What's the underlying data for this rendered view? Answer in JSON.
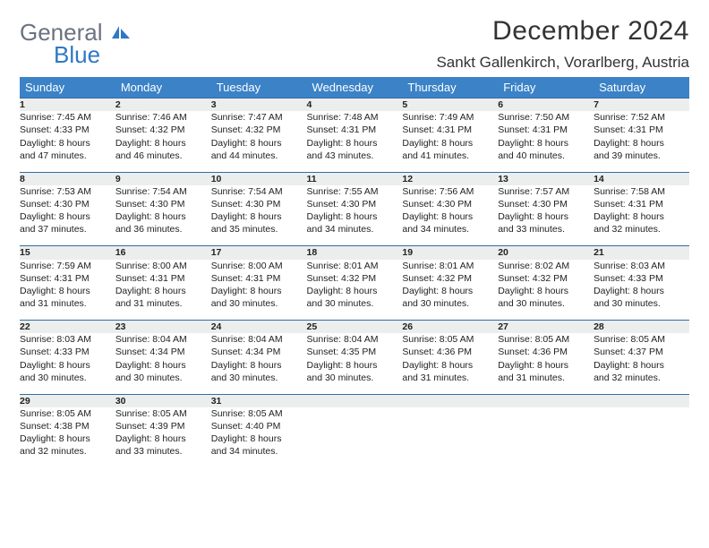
{
  "logo": {
    "word1": "General",
    "word2": "Blue"
  },
  "title": "December 2024",
  "location": "Sankt Gallenkirch, Vorarlberg, Austria",
  "colors": {
    "header_bg": "#3b82c7",
    "header_text": "#ffffff",
    "daynum_bg": "#eceded",
    "daynum_border": "#2f6fa8",
    "logo_gray": "#6b7280",
    "logo_blue": "#2f78c4"
  },
  "weekdays": [
    "Sunday",
    "Monday",
    "Tuesday",
    "Wednesday",
    "Thursday",
    "Friday",
    "Saturday"
  ],
  "weeks": [
    [
      {
        "n": "1",
        "sr": "Sunrise: 7:45 AM",
        "ss": "Sunset: 4:33 PM",
        "d1": "Daylight: 8 hours",
        "d2": "and 47 minutes."
      },
      {
        "n": "2",
        "sr": "Sunrise: 7:46 AM",
        "ss": "Sunset: 4:32 PM",
        "d1": "Daylight: 8 hours",
        "d2": "and 46 minutes."
      },
      {
        "n": "3",
        "sr": "Sunrise: 7:47 AM",
        "ss": "Sunset: 4:32 PM",
        "d1": "Daylight: 8 hours",
        "d2": "and 44 minutes."
      },
      {
        "n": "4",
        "sr": "Sunrise: 7:48 AM",
        "ss": "Sunset: 4:31 PM",
        "d1": "Daylight: 8 hours",
        "d2": "and 43 minutes."
      },
      {
        "n": "5",
        "sr": "Sunrise: 7:49 AM",
        "ss": "Sunset: 4:31 PM",
        "d1": "Daylight: 8 hours",
        "d2": "and 41 minutes."
      },
      {
        "n": "6",
        "sr": "Sunrise: 7:50 AM",
        "ss": "Sunset: 4:31 PM",
        "d1": "Daylight: 8 hours",
        "d2": "and 40 minutes."
      },
      {
        "n": "7",
        "sr": "Sunrise: 7:52 AM",
        "ss": "Sunset: 4:31 PM",
        "d1": "Daylight: 8 hours",
        "d2": "and 39 minutes."
      }
    ],
    [
      {
        "n": "8",
        "sr": "Sunrise: 7:53 AM",
        "ss": "Sunset: 4:30 PM",
        "d1": "Daylight: 8 hours",
        "d2": "and 37 minutes."
      },
      {
        "n": "9",
        "sr": "Sunrise: 7:54 AM",
        "ss": "Sunset: 4:30 PM",
        "d1": "Daylight: 8 hours",
        "d2": "and 36 minutes."
      },
      {
        "n": "10",
        "sr": "Sunrise: 7:54 AM",
        "ss": "Sunset: 4:30 PM",
        "d1": "Daylight: 8 hours",
        "d2": "and 35 minutes."
      },
      {
        "n": "11",
        "sr": "Sunrise: 7:55 AM",
        "ss": "Sunset: 4:30 PM",
        "d1": "Daylight: 8 hours",
        "d2": "and 34 minutes."
      },
      {
        "n": "12",
        "sr": "Sunrise: 7:56 AM",
        "ss": "Sunset: 4:30 PM",
        "d1": "Daylight: 8 hours",
        "d2": "and 34 minutes."
      },
      {
        "n": "13",
        "sr": "Sunrise: 7:57 AM",
        "ss": "Sunset: 4:30 PM",
        "d1": "Daylight: 8 hours",
        "d2": "and 33 minutes."
      },
      {
        "n": "14",
        "sr": "Sunrise: 7:58 AM",
        "ss": "Sunset: 4:31 PM",
        "d1": "Daylight: 8 hours",
        "d2": "and 32 minutes."
      }
    ],
    [
      {
        "n": "15",
        "sr": "Sunrise: 7:59 AM",
        "ss": "Sunset: 4:31 PM",
        "d1": "Daylight: 8 hours",
        "d2": "and 31 minutes."
      },
      {
        "n": "16",
        "sr": "Sunrise: 8:00 AM",
        "ss": "Sunset: 4:31 PM",
        "d1": "Daylight: 8 hours",
        "d2": "and 31 minutes."
      },
      {
        "n": "17",
        "sr": "Sunrise: 8:00 AM",
        "ss": "Sunset: 4:31 PM",
        "d1": "Daylight: 8 hours",
        "d2": "and 30 minutes."
      },
      {
        "n": "18",
        "sr": "Sunrise: 8:01 AM",
        "ss": "Sunset: 4:32 PM",
        "d1": "Daylight: 8 hours",
        "d2": "and 30 minutes."
      },
      {
        "n": "19",
        "sr": "Sunrise: 8:01 AM",
        "ss": "Sunset: 4:32 PM",
        "d1": "Daylight: 8 hours",
        "d2": "and 30 minutes."
      },
      {
        "n": "20",
        "sr": "Sunrise: 8:02 AM",
        "ss": "Sunset: 4:32 PM",
        "d1": "Daylight: 8 hours",
        "d2": "and 30 minutes."
      },
      {
        "n": "21",
        "sr": "Sunrise: 8:03 AM",
        "ss": "Sunset: 4:33 PM",
        "d1": "Daylight: 8 hours",
        "d2": "and 30 minutes."
      }
    ],
    [
      {
        "n": "22",
        "sr": "Sunrise: 8:03 AM",
        "ss": "Sunset: 4:33 PM",
        "d1": "Daylight: 8 hours",
        "d2": "and 30 minutes."
      },
      {
        "n": "23",
        "sr": "Sunrise: 8:04 AM",
        "ss": "Sunset: 4:34 PM",
        "d1": "Daylight: 8 hours",
        "d2": "and 30 minutes."
      },
      {
        "n": "24",
        "sr": "Sunrise: 8:04 AM",
        "ss": "Sunset: 4:34 PM",
        "d1": "Daylight: 8 hours",
        "d2": "and 30 minutes."
      },
      {
        "n": "25",
        "sr": "Sunrise: 8:04 AM",
        "ss": "Sunset: 4:35 PM",
        "d1": "Daylight: 8 hours",
        "d2": "and 30 minutes."
      },
      {
        "n": "26",
        "sr": "Sunrise: 8:05 AM",
        "ss": "Sunset: 4:36 PM",
        "d1": "Daylight: 8 hours",
        "d2": "and 31 minutes."
      },
      {
        "n": "27",
        "sr": "Sunrise: 8:05 AM",
        "ss": "Sunset: 4:36 PM",
        "d1": "Daylight: 8 hours",
        "d2": "and 31 minutes."
      },
      {
        "n": "28",
        "sr": "Sunrise: 8:05 AM",
        "ss": "Sunset: 4:37 PM",
        "d1": "Daylight: 8 hours",
        "d2": "and 32 minutes."
      }
    ],
    [
      {
        "n": "29",
        "sr": "Sunrise: 8:05 AM",
        "ss": "Sunset: 4:38 PM",
        "d1": "Daylight: 8 hours",
        "d2": "and 32 minutes."
      },
      {
        "n": "30",
        "sr": "Sunrise: 8:05 AM",
        "ss": "Sunset: 4:39 PM",
        "d1": "Daylight: 8 hours",
        "d2": "and 33 minutes."
      },
      {
        "n": "31",
        "sr": "Sunrise: 8:05 AM",
        "ss": "Sunset: 4:40 PM",
        "d1": "Daylight: 8 hours",
        "d2": "and 34 minutes."
      },
      null,
      null,
      null,
      null
    ]
  ]
}
